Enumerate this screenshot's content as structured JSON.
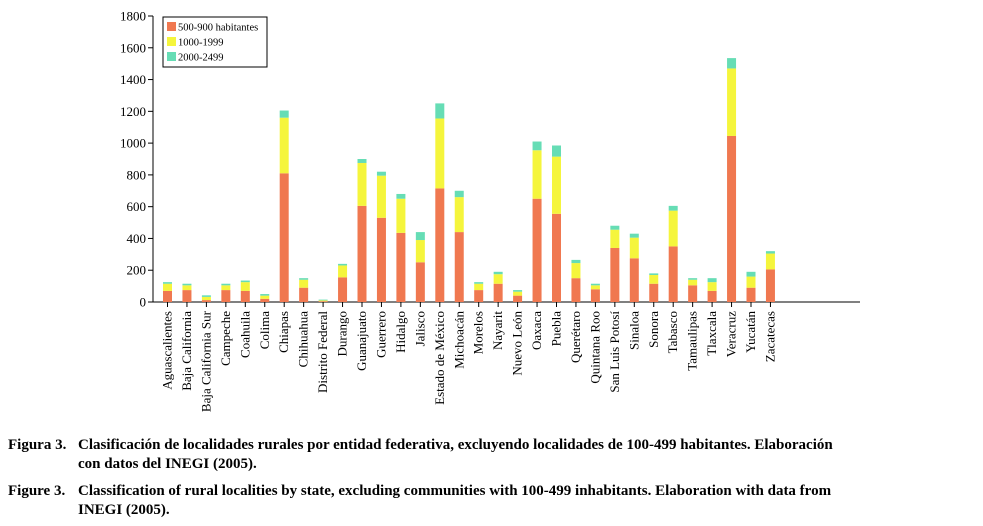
{
  "chart_data": {
    "type": "bar",
    "stacked": true,
    "categories": [
      "Aguascalientes",
      "Baja California",
      "Baja California Sur",
      "Campeche",
      "Coahuila",
      "Colima",
      "Chiapas",
      "Chihuahua",
      "Distrito Federal",
      "Durango",
      "Guanajuato",
      "Guerrero",
      "Hidalgo",
      "Jalisco",
      "Estado de México",
      "Michoacán",
      "Morelos",
      "Nayarit",
      "Nuevo León",
      "Oaxaca",
      "Puebla",
      "Querétaro",
      "Quintana Roo",
      "San Luis Potosí",
      "Sinaloa",
      "Sonora",
      "Tabasco",
      "Tamaulipas",
      "Tlaxcala",
      "Veracruz",
      "Yucatán",
      "Zacatecas"
    ],
    "series": [
      {
        "name": "500-900 habitantes",
        "color": "#F07850",
        "values": [
          70,
          75,
          12,
          75,
          70,
          20,
          810,
          90,
          5,
          155,
          605,
          530,
          435,
          250,
          715,
          440,
          75,
          115,
          40,
          650,
          555,
          150,
          80,
          340,
          275,
          115,
          350,
          105,
          70,
          1045,
          90,
          205
        ]
      },
      {
        "name": "1000-1999",
        "color": "#F5F53C",
        "values": [
          45,
          30,
          20,
          30,
          55,
          20,
          350,
          50,
          5,
          75,
          270,
          265,
          215,
          140,
          440,
          220,
          40,
          60,
          25,
          305,
          360,
          95,
          25,
          115,
          130,
          55,
          225,
          35,
          55,
          425,
          70,
          100
        ]
      },
      {
        "name": "2000-2499",
        "color": "#66DDB5",
        "values": [
          10,
          10,
          10,
          10,
          10,
          10,
          45,
          10,
          5,
          10,
          25,
          25,
          30,
          50,
          95,
          40,
          10,
          15,
          10,
          55,
          70,
          20,
          10,
          25,
          25,
          10,
          30,
          10,
          25,
          65,
          30,
          15
        ]
      }
    ],
    "ylim": [
      0,
      1800
    ],
    "yticks": [
      "0",
      "200",
      "400",
      "600",
      "800",
      "1000",
      "1200",
      "1400",
      "1600",
      "1800"
    ],
    "legend": "top-left"
  },
  "caption": {
    "es": {
      "label": "Figura 3.",
      "line1": "Clasificación de localidades rurales por entidad federativa, excluyendo localidades de 100-499 habitantes. Elaboración",
      "line2": "con datos del INEGI (2005)."
    },
    "en": {
      "label": "Figure 3.",
      "line1": "Classification of rural localities by state, excluding communities with 100-499 inhabitants. Elaboration with data from",
      "line2": "INEGI (2005)."
    }
  }
}
